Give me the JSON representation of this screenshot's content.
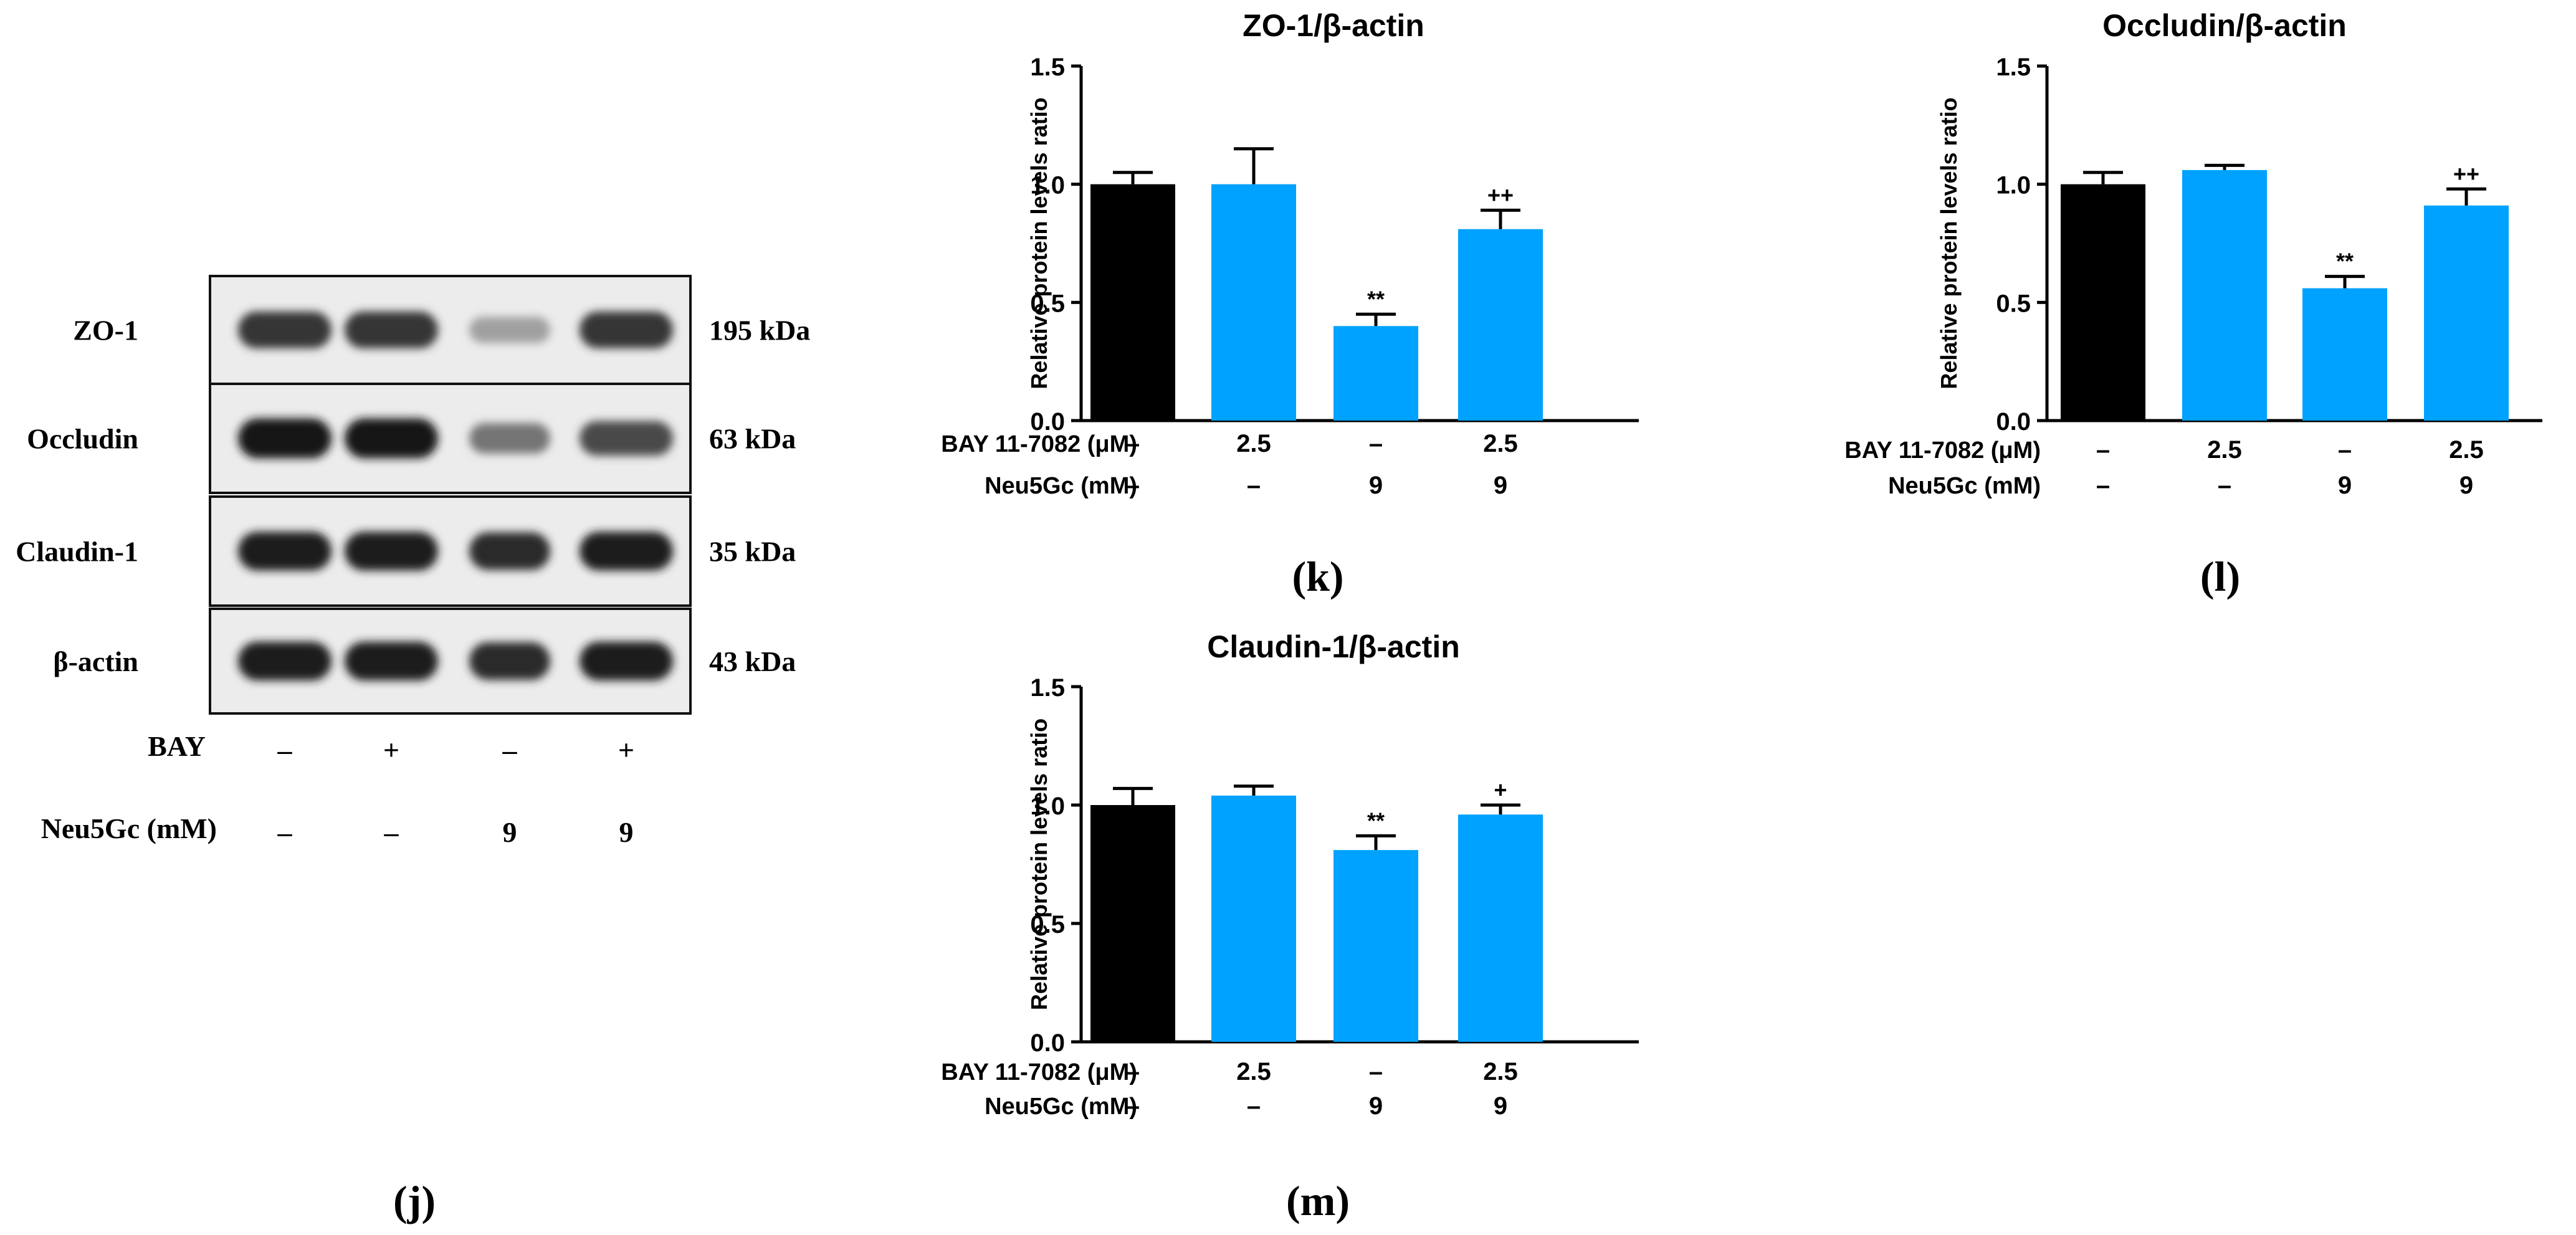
{
  "western_blot": {
    "panel_label": "(j)",
    "bands": [
      {
        "protein": "ZO-1",
        "size": "195 kDa",
        "intensity": [
          0.85,
          0.85,
          0.35,
          0.85
        ]
      },
      {
        "protein": "Occludin",
        "size": "63 kDa",
        "intensity": [
          1.0,
          1.0,
          0.55,
          0.75
        ]
      },
      {
        "protein": "Claudin-1",
        "size": "35 kDa",
        "intensity": [
          0.95,
          0.95,
          0.9,
          0.95
        ]
      },
      {
        "protein": "β-actin",
        "size": "43 kDa",
        "intensity": [
          0.95,
          0.95,
          0.9,
          0.95
        ]
      }
    ],
    "conditions": [
      {
        "label": "BAY",
        "values": [
          "–",
          "+",
          "–",
          "+"
        ]
      },
      {
        "label": "Neu5Gc (mM)",
        "values": [
          "–",
          "–",
          "9",
          "9"
        ]
      }
    ]
  },
  "chart_data": [
    {
      "panel_label": "(k)",
      "type": "bar",
      "title": "ZO-1/β-actin",
      "ylabel": "Relative protein levels ratio",
      "ylim": [
        0,
        1.5
      ],
      "yticks": [
        "0.0",
        "0.5",
        "1.0",
        "1.5"
      ],
      "values": [
        1.0,
        1.0,
        0.4,
        0.81
      ],
      "errors": [
        0.05,
        0.15,
        0.05,
        0.08
      ],
      "annotations": [
        "",
        "",
        "**",
        "++"
      ],
      "colors": [
        "#000000",
        "#00a2ff",
        "#00a2ff",
        "#00a2ff"
      ],
      "conditions": [
        {
          "label": "BAY 11-7082 (μM)",
          "values": [
            "–",
            "2.5",
            "–",
            "2.5"
          ]
        },
        {
          "label": "Neu5Gc (mM)",
          "values": [
            "–",
            "–",
            "9",
            "9"
          ]
        }
      ]
    },
    {
      "panel_label": "(l)",
      "type": "bar",
      "title": "Occludin/β-actin",
      "ylabel": "Relative protein levels ratio",
      "ylim": [
        0,
        1.5
      ],
      "yticks": [
        "0.0",
        "0.5",
        "1.0",
        "1.5"
      ],
      "values": [
        1.0,
        1.06,
        0.56,
        0.91
      ],
      "errors": [
        0.05,
        0.02,
        0.05,
        0.07
      ],
      "annotations": [
        "",
        "",
        "**",
        "++"
      ],
      "colors": [
        "#000000",
        "#00a2ff",
        "#00a2ff",
        "#00a2ff"
      ],
      "conditions": [
        {
          "label": "BAY 11-7082 (μM)",
          "values": [
            "–",
            "2.5",
            "–",
            "2.5"
          ]
        },
        {
          "label": "Neu5Gc (mM)",
          "values": [
            "–",
            "–",
            "9",
            "9"
          ]
        }
      ]
    },
    {
      "panel_label": "(m)",
      "type": "bar",
      "title": "Claudin-1/β-actin",
      "ylabel": "Relative protein levels ratio",
      "ylim": [
        0,
        1.5
      ],
      "yticks": [
        "0.0",
        "0.5",
        "1.0",
        "1.5"
      ],
      "values": [
        1.0,
        1.04,
        0.81,
        0.96
      ],
      "errors": [
        0.07,
        0.04,
        0.06,
        0.04
      ],
      "annotations": [
        "",
        "",
        "**",
        "+"
      ],
      "colors": [
        "#000000",
        "#00a2ff",
        "#00a2ff",
        "#00a2ff"
      ],
      "conditions": [
        {
          "label": "BAY 11-7082 (μM)",
          "values": [
            "–",
            "2.5",
            "–",
            "2.5"
          ]
        },
        {
          "label": "Neu5Gc (mM)",
          "values": [
            "–",
            "–",
            "9",
            "9"
          ]
        }
      ]
    }
  ]
}
